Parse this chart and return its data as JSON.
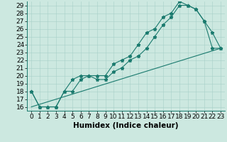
{
  "title": "",
  "xlabel": "Humidex (Indice chaleur)",
  "ylabel": "",
  "bg_color": "#cce8e0",
  "line_color": "#1a7a6e",
  "xlim": [
    -0.5,
    23.5
  ],
  "ylim": [
    15.5,
    29.5
  ],
  "yticks": [
    16,
    17,
    18,
    19,
    20,
    21,
    22,
    23,
    24,
    25,
    26,
    27,
    28,
    29
  ],
  "xticks": [
    0,
    1,
    2,
    3,
    4,
    5,
    6,
    7,
    8,
    9,
    10,
    11,
    12,
    13,
    14,
    15,
    16,
    17,
    18,
    19,
    20,
    21,
    22,
    23
  ],
  "line1_x": [
    0,
    1,
    2,
    3,
    4,
    5,
    6,
    7,
    8,
    9,
    10,
    11,
    12,
    13,
    14,
    15,
    16,
    17,
    18,
    19,
    20,
    21,
    22,
    23
  ],
  "line1_y": [
    18,
    16,
    16,
    16,
    18,
    19.5,
    20,
    20,
    19.5,
    19.5,
    20.5,
    21,
    22,
    22.5,
    23.5,
    25,
    26.5,
    27.5,
    29,
    29,
    28.5,
    27,
    23.5,
    23.5
  ],
  "line2_x": [
    0,
    1,
    2,
    3,
    4,
    5,
    6,
    7,
    8,
    9,
    10,
    11,
    12,
    13,
    14,
    15,
    16,
    17,
    18,
    19,
    20,
    21,
    22,
    23
  ],
  "line2_y": [
    18,
    16,
    16,
    16,
    18,
    18,
    19.5,
    20,
    20,
    20,
    21.5,
    22,
    22.5,
    24,
    25.5,
    26,
    27.5,
    28,
    29.5,
    29,
    28.5,
    27,
    25.5,
    23.5
  ],
  "line3_x": [
    0,
    23
  ],
  "line3_y": [
    16,
    23.5
  ],
  "marker_size": 3.5,
  "font_size": 6.5,
  "xlabel_fontsize": 7.5
}
